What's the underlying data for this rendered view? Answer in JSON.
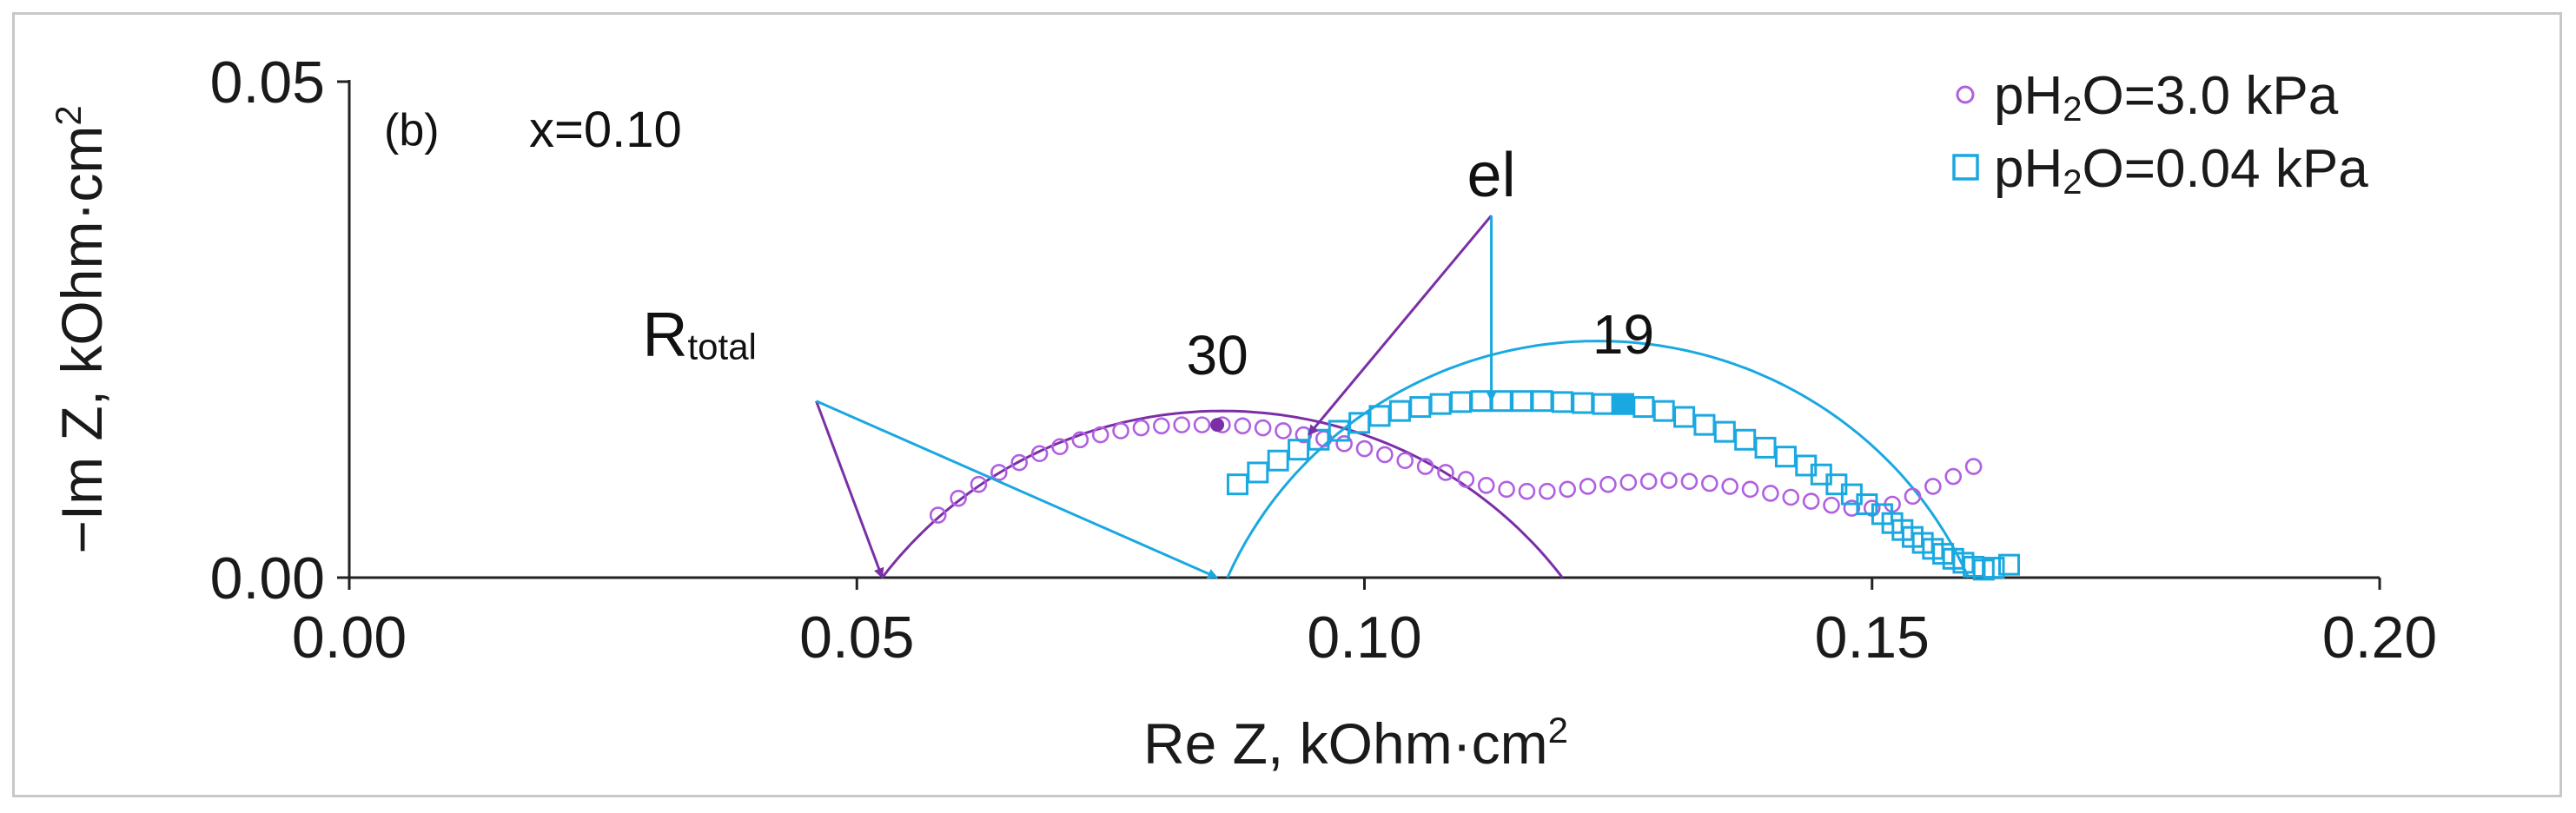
{
  "chart_data": {
    "type": "scatter",
    "panel_label": "(b)",
    "condition_label": "x=0.10",
    "xlabel": "Re Z, kOhm·cm",
    "ylabel": "−Im Z, kOhm·cm",
    "unit_superscript": "2",
    "xlim": [
      0.0,
      0.2
    ],
    "ylim": [
      0.0,
      0.05
    ],
    "xticks": [
      "0.00",
      "0.05",
      "0.10",
      "0.15",
      "0.20"
    ],
    "yticks": [
      "0.00",
      "0.05"
    ],
    "legend_position": "top-right",
    "series": [
      {
        "name_parts": [
          "pH",
          "2",
          "O=3.0 kPa"
        ],
        "marker": "circle",
        "color": "#b060e0",
        "fit_color": "#7b2fa6",
        "x": [
          0.058,
          0.06,
          0.062,
          0.064,
          0.066,
          0.068,
          0.07,
          0.072,
          0.074,
          0.076,
          0.078,
          0.08,
          0.082,
          0.084,
          0.086,
          0.088,
          0.09,
          0.092,
          0.094,
          0.096,
          0.098,
          0.1,
          0.102,
          0.104,
          0.106,
          0.108,
          0.11,
          0.112,
          0.114,
          0.116,
          0.118,
          0.12,
          0.122,
          0.124,
          0.126,
          0.128,
          0.13,
          0.132,
          0.134,
          0.136,
          0.138,
          0.14,
          0.142,
          0.144,
          0.146,
          0.148,
          0.15,
          0.152,
          0.154,
          0.156,
          0.158,
          0.16
        ],
        "y": [
          0.0063,
          0.008,
          0.0094,
          0.0106,
          0.0116,
          0.0125,
          0.0132,
          0.0139,
          0.0144,
          0.0148,
          0.0151,
          0.0153,
          0.0154,
          0.0154,
          0.0154,
          0.0153,
          0.0151,
          0.0148,
          0.0144,
          0.014,
          0.0135,
          0.013,
          0.0124,
          0.0118,
          0.0112,
          0.0106,
          0.0099,
          0.0093,
          0.0089,
          0.0087,
          0.0087,
          0.0089,
          0.0092,
          0.0094,
          0.0096,
          0.0097,
          0.0098,
          0.0097,
          0.0095,
          0.0092,
          0.0089,
          0.0085,
          0.0081,
          0.0077,
          0.0073,
          0.007,
          0.007,
          0.0074,
          0.0082,
          0.0092,
          0.0102,
          0.0112
        ],
        "fit_arc": {
          "r0": 0.0525,
          "r1": 0.1195,
          "depression": -0.025
        },
        "highlight_point": {
          "x": 0.0855,
          "y": 0.0154,
          "label": "30"
        }
      },
      {
        "name_parts": [
          "pH",
          "2",
          "O=0.04 kPa"
        ],
        "marker": "square",
        "color": "#1aa8e0",
        "fit_color": "#1aa8e0",
        "x": [
          0.0875,
          0.0895,
          0.0915,
          0.0935,
          0.0955,
          0.0975,
          0.0995,
          0.1015,
          0.1035,
          0.1055,
          0.1075,
          0.1095,
          0.1115,
          0.1135,
          0.1155,
          0.1175,
          0.1195,
          0.1215,
          0.1235,
          0.1255,
          0.1275,
          0.1295,
          0.1315,
          0.1335,
          0.1355,
          0.1375,
          0.1395,
          0.1415,
          0.1435,
          0.145,
          0.1465,
          0.148,
          0.1495,
          0.151,
          0.152,
          0.153,
          0.154,
          0.155,
          0.156,
          0.157,
          0.158,
          0.159,
          0.16,
          0.161,
          0.162,
          0.1635
        ],
        "y": [
          0.0094,
          0.0106,
          0.0118,
          0.0129,
          0.0139,
          0.0148,
          0.0156,
          0.0163,
          0.0168,
          0.0172,
          0.0175,
          0.0177,
          0.0178,
          0.0178,
          0.0178,
          0.0178,
          0.0177,
          0.0176,
          0.0175,
          0.0175,
          0.0172,
          0.0168,
          0.0162,
          0.0154,
          0.0147,
          0.0139,
          0.0131,
          0.0122,
          0.0113,
          0.0104,
          0.0094,
          0.0084,
          0.0074,
          0.0064,
          0.0055,
          0.0048,
          0.0041,
          0.0035,
          0.0029,
          0.0024,
          0.0019,
          0.0015,
          0.0011,
          0.0008,
          0.001,
          0.0013
        ],
        "fit_arc": {
          "r0": 0.0865,
          "r1": 0.1595,
          "depression": -0.016
        },
        "highlight_point": {
          "x": 0.1255,
          "y": 0.0175,
          "label": "19"
        }
      }
    ],
    "annotations": {
      "el": {
        "text": "el",
        "tail": [
          0.1125,
          0.0365
        ],
        "heads": [
          {
            "to": [
              0.0945,
              0.0144
            ],
            "series": 0
          },
          {
            "to": [
              0.1125,
              0.0178
            ],
            "series": 1
          }
        ]
      },
      "rtotal": {
        "text_main": "R",
        "text_sub": "total",
        "tail": [
          0.046,
          0.0178
        ],
        "heads": [
          {
            "to": [
              0.0525,
              0.0
            ],
            "series": 0
          },
          {
            "to": [
              0.0855,
              0.0
            ],
            "series": 1
          }
        ]
      }
    }
  }
}
